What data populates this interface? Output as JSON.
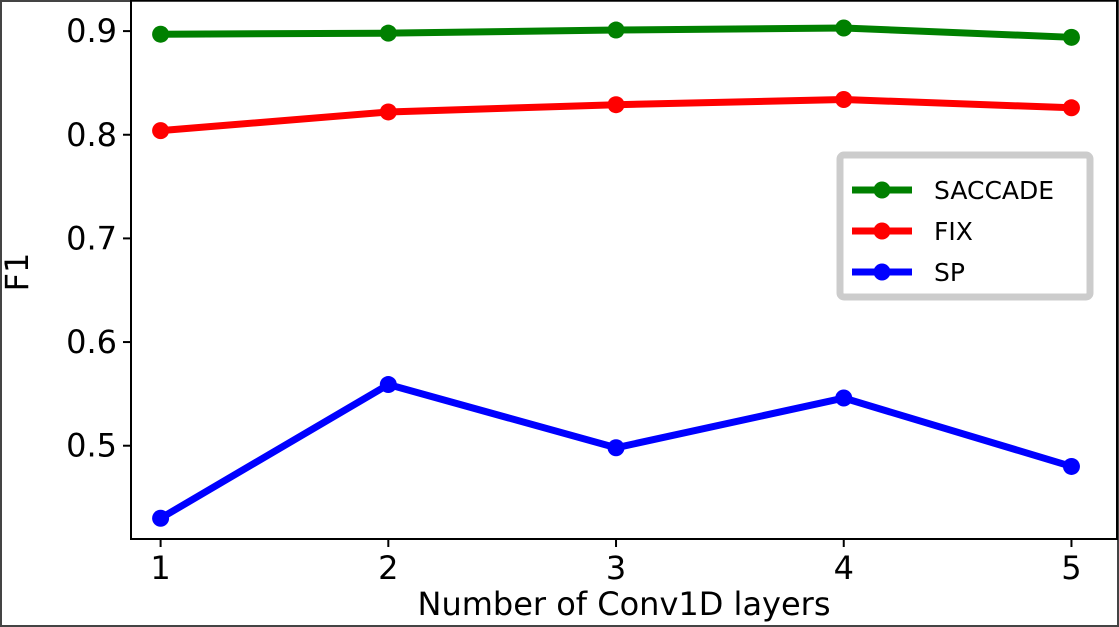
{
  "chart_data": {
    "type": "line",
    "title": "",
    "xlabel": "Number of Conv1D layers",
    "ylabel": "F1",
    "x": [
      1,
      2,
      3,
      4,
      5
    ],
    "xticks": [
      "1",
      "2",
      "3",
      "4",
      "5"
    ],
    "yticks": [
      "0.5",
      "0.6",
      "0.7",
      "0.8",
      "0.9"
    ],
    "xlim": [
      0.87,
      5.2
    ],
    "ylim": [
      0.41,
      0.93
    ],
    "grid": false,
    "legend_position": "right",
    "series": [
      {
        "name": "SACCADE",
        "color": "#008000",
        "values": [
          0.897,
          0.898,
          0.901,
          0.903,
          0.894
        ]
      },
      {
        "name": "FIX",
        "color": "#ff0000",
        "values": [
          0.804,
          0.822,
          0.829,
          0.834,
          0.826
        ]
      },
      {
        "name": "SP",
        "color": "#0000ff",
        "values": [
          0.43,
          0.559,
          0.498,
          0.546,
          0.48
        ]
      }
    ]
  }
}
